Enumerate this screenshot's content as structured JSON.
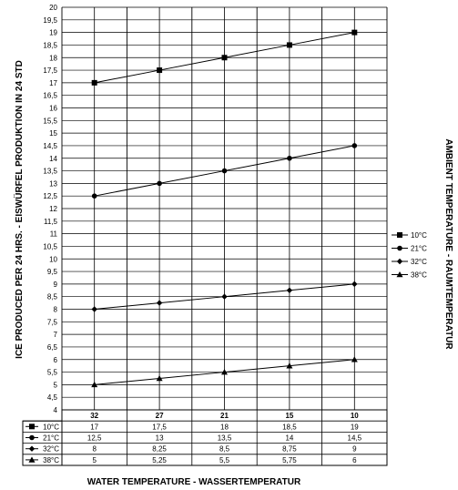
{
  "chart_data": {
    "type": "line",
    "ylabel": "ICE PRODUCED PER 24 HRS. - EISWÜRFEL PRODUKTION IN 24 STD",
    "xlabel": "WATER TEMPERATURE - WASSERTEMPERATUR",
    "right_label": "AMBIENT TEMPERATURE - RAUMTEMPERATUR",
    "ylim": [
      4,
      20
    ],
    "y_step": 0.5,
    "y_ticks": [
      "4",
      "4,5",
      "5",
      "5,5",
      "6",
      "6,5",
      "7",
      "7,5",
      "8",
      "8,5",
      "9",
      "9,5",
      "10",
      "10,5",
      "11",
      "11,5",
      "12",
      "12,5",
      "13",
      "13,5",
      "14",
      "14,5",
      "15",
      "15,5",
      "16",
      "16,5",
      "17",
      "17,5",
      "18",
      "18,5",
      "19",
      "19,5",
      "20"
    ],
    "categories": [
      "32",
      "27",
      "21",
      "15",
      "10"
    ],
    "grid": true,
    "legend_position": "right",
    "series": [
      {
        "name": "10°C",
        "marker": "square",
        "values": [
          17,
          17.5,
          18,
          18.5,
          19
        ],
        "labels": [
          "17",
          "17,5",
          "18",
          "18,5",
          "19"
        ]
      },
      {
        "name": "21°C",
        "marker": "circle",
        "values": [
          12.5,
          13,
          13.5,
          14,
          14.5
        ],
        "labels": [
          "12,5",
          "13",
          "13,5",
          "14",
          "14,5"
        ]
      },
      {
        "name": "32°C",
        "marker": "diamond",
        "values": [
          8,
          8.25,
          8.5,
          8.75,
          9
        ],
        "labels": [
          "8",
          "8,25",
          "8,5",
          "8,75",
          "9"
        ]
      },
      {
        "name": "38°C",
        "marker": "triangle",
        "values": [
          5,
          5.25,
          5.5,
          5.75,
          6
        ],
        "labels": [
          "5",
          "5,25",
          "5,5",
          "5,75",
          "6"
        ]
      }
    ]
  }
}
